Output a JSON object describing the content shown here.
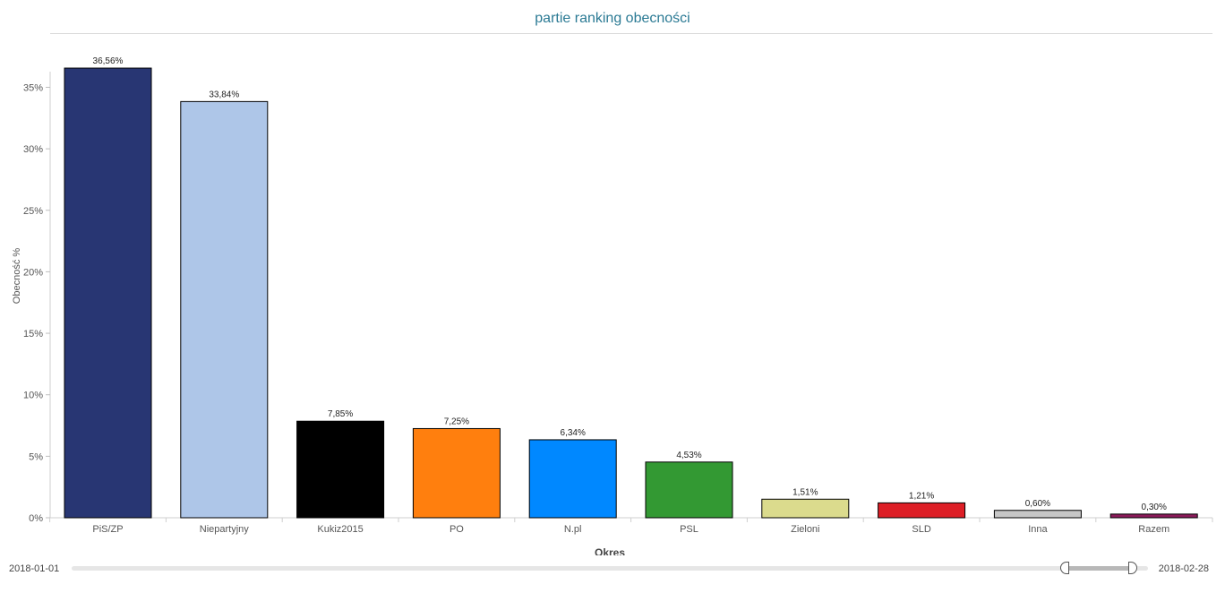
{
  "chart_data": {
    "type": "bar",
    "title": "partie ranking obecności",
    "xlabel": "Okres",
    "ylabel": "Obecność %",
    "ylim": [
      0,
      38
    ],
    "yticks": [
      0,
      5,
      10,
      15,
      20,
      25,
      30,
      35
    ],
    "ytick_labels": [
      "0%",
      "5%",
      "10%",
      "15%",
      "20%",
      "25%",
      "30%",
      "35%"
    ],
    "grid": false,
    "legend": "none",
    "categories": [
      "PiS/ZP",
      "Niepartyjny",
      "Kukiz2015",
      "PO",
      "N.pl",
      "PSL",
      "Zieloni",
      "SLD",
      "Inna",
      "Razem"
    ],
    "values": [
      36.56,
      33.84,
      7.85,
      7.25,
      6.34,
      4.53,
      1.51,
      1.21,
      0.6,
      0.3
    ],
    "data_labels": [
      "36,56%",
      "33,84%",
      "7,85%",
      "7,25%",
      "6,34%",
      "4,53%",
      "1,51%",
      "1,21%",
      "0,60%",
      "0,30%"
    ],
    "colors": [
      "#283673",
      "#aec6e8",
      "#000000",
      "#ff7f0e",
      "#0088ff",
      "#339933",
      "#dbdb8d",
      "#dd1e26",
      "#c7c7c7",
      "#8b1a5a"
    ]
  },
  "range_slider": {
    "start_label": "2018-01-01",
    "end_label": "2018-02-28"
  }
}
